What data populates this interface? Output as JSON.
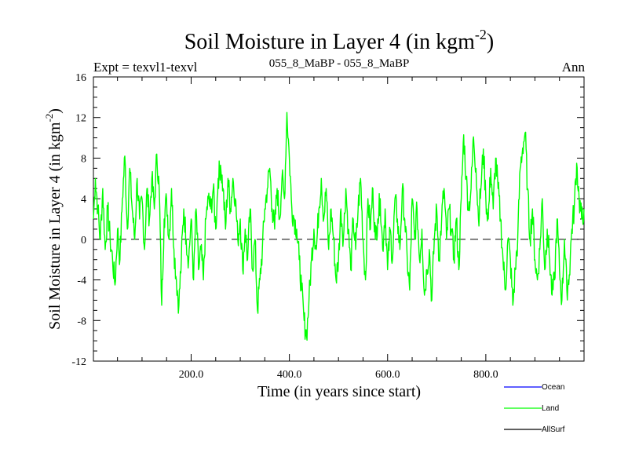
{
  "chart_data": {
    "type": "line",
    "title": "Soil Moisture in Layer 4 (in kgm",
    "title_sup": "-2",
    "title_close": ")",
    "subtitle_left": "Expt = texvl1-texvl",
    "subtitle_center": "055_8_MaBP - 055_8_MaBP",
    "subtitle_right": "Ann",
    "xlabel": "Time (in years since start)",
    "ylabel": "Soil Moisture in Layer 4 (in kgm",
    "ylabel_sup": "-2",
    "ylabel_close": ")",
    "xlim": [
      1,
      1000
    ],
    "ylim": [
      -12,
      16
    ],
    "xticks": [
      200,
      400,
      600,
      800
    ],
    "xtick_labels": [
      "200.0",
      "400.0",
      "600.0",
      "800.0"
    ],
    "yticks": [
      -12,
      -8,
      -4,
      0,
      4,
      8,
      12,
      16
    ],
    "ytick_labels": [
      "-12",
      "-8",
      "-4",
      "0",
      "4",
      "8",
      "12",
      "16"
    ],
    "zero_line": 0,
    "keypoints": [
      [
        1,
        2
      ],
      [
        5,
        6
      ],
      [
        10,
        3
      ],
      [
        15,
        0
      ],
      [
        20,
        5
      ],
      [
        25,
        -1
      ],
      [
        30,
        3
      ],
      [
        35,
        0
      ],
      [
        40,
        -2
      ],
      [
        45,
        -4.5
      ],
      [
        50,
        1
      ],
      [
        55,
        -2
      ],
      [
        60,
        4
      ],
      [
        65,
        8.2
      ],
      [
        70,
        1
      ],
      [
        75,
        7
      ],
      [
        80,
        3
      ],
      [
        85,
        0
      ],
      [
        90,
        6
      ],
      [
        95,
        2
      ],
      [
        100,
        4
      ],
      [
        105,
        -1
      ],
      [
        110,
        5
      ],
      [
        115,
        2
      ],
      [
        120,
        6
      ],
      [
        125,
        3
      ],
      [
        130,
        8.4
      ],
      [
        135,
        5
      ],
      [
        140,
        -6.5
      ],
      [
        145,
        2
      ],
      [
        150,
        4
      ],
      [
        155,
        0
      ],
      [
        160,
        5
      ],
      [
        165,
        -1
      ],
      [
        170,
        -4
      ],
      [
        175,
        -6.5
      ],
      [
        180,
        -2
      ],
      [
        185,
        3
      ],
      [
        190,
        0
      ],
      [
        195,
        -2
      ],
      [
        200,
        2
      ],
      [
        205,
        -4
      ],
      [
        210,
        3
      ],
      [
        215,
        -3
      ],
      [
        220,
        -1
      ],
      [
        225,
        -4
      ],
      [
        230,
        2
      ],
      [
        235,
        4
      ],
      [
        240,
        3
      ],
      [
        245,
        5
      ],
      [
        250,
        1
      ],
      [
        255,
        6
      ],
      [
        260,
        7.3
      ],
      [
        265,
        5
      ],
      [
        270,
        1
      ],
      [
        275,
        6
      ],
      [
        280,
        3
      ],
      [
        285,
        6
      ],
      [
        290,
        4
      ],
      [
        295,
        0
      ],
      [
        300,
        2
      ],
      [
        305,
        -3
      ],
      [
        310,
        1
      ],
      [
        315,
        -2
      ],
      [
        320,
        3
      ],
      [
        325,
        -3
      ],
      [
        330,
        0
      ],
      [
        335,
        -7
      ],
      [
        340,
        -4
      ],
      [
        345,
        -1
      ],
      [
        350,
        3
      ],
      [
        355,
        5
      ],
      [
        360,
        7
      ],
      [
        365,
        3
      ],
      [
        370,
        1
      ],
      [
        375,
        5
      ],
      [
        380,
        2
      ],
      [
        385,
        6
      ],
      [
        390,
        4
      ],
      [
        395,
        12.5
      ],
      [
        400,
        8
      ],
      [
        405,
        3
      ],
      [
        410,
        2
      ],
      [
        415,
        1
      ],
      [
        420,
        -2
      ],
      [
        425,
        -5
      ],
      [
        430,
        -8
      ],
      [
        435,
        -9.5
      ],
      [
        440,
        -6
      ],
      [
        445,
        -2
      ],
      [
        450,
        1
      ],
      [
        455,
        -1
      ],
      [
        460,
        3
      ],
      [
        465,
        6
      ],
      [
        470,
        2
      ],
      [
        475,
        5
      ],
      [
        480,
        -1
      ],
      [
        485,
        3
      ],
      [
        490,
        0
      ],
      [
        495,
        -4
      ],
      [
        500,
        -2
      ],
      [
        505,
        3
      ],
      [
        510,
        0
      ],
      [
        515,
        5
      ],
      [
        520,
        1
      ],
      [
        525,
        -3
      ],
      [
        530,
        2
      ],
      [
        535,
        -1
      ],
      [
        540,
        3
      ],
      [
        545,
        6
      ],
      [
        550,
        0
      ],
      [
        555,
        -4
      ],
      [
        560,
        4
      ],
      [
        565,
        1
      ],
      [
        570,
        5
      ],
      [
        575,
        0
      ],
      [
        580,
        2
      ],
      [
        585,
        4
      ],
      [
        590,
        -1
      ],
      [
        595,
        3
      ],
      [
        600,
        -3
      ],
      [
        605,
        1
      ],
      [
        610,
        -2
      ],
      [
        615,
        4
      ],
      [
        620,
        2
      ],
      [
        625,
        -1
      ],
      [
        630,
        5
      ],
      [
        635,
        2
      ],
      [
        640,
        -2
      ],
      [
        645,
        -5
      ],
      [
        650,
        4
      ],
      [
        655,
        0
      ],
      [
        660,
        3
      ],
      [
        665,
        -2
      ],
      [
        670,
        1
      ],
      [
        675,
        -5.5
      ],
      [
        680,
        -3
      ],
      [
        685,
        -1
      ],
      [
        690,
        -6
      ],
      [
        695,
        0
      ],
      [
        700,
        3
      ],
      [
        705,
        -2
      ],
      [
        710,
        2
      ],
      [
        715,
        5
      ],
      [
        720,
        0
      ],
      [
        725,
        3
      ],
      [
        730,
        1
      ],
      [
        735,
        -2
      ],
      [
        740,
        2
      ],
      [
        745,
        -3
      ],
      [
        750,
        4
      ],
      [
        755,
        10.3
      ],
      [
        760,
        6
      ],
      [
        765,
        3
      ],
      [
        770,
        5
      ],
      [
        775,
        10.1
      ],
      [
        780,
        7
      ],
      [
        785,
        2
      ],
      [
        790,
        5
      ],
      [
        795,
        8.9
      ],
      [
        800,
        4
      ],
      [
        805,
        2
      ],
      [
        810,
        7
      ],
      [
        815,
        3
      ],
      [
        820,
        8
      ],
      [
        825,
        5
      ],
      [
        830,
        2
      ],
      [
        835,
        -2
      ],
      [
        840,
        -5
      ],
      [
        845,
        0
      ],
      [
        850,
        -2
      ],
      [
        855,
        -6.5
      ],
      [
        860,
        -3
      ],
      [
        865,
        0
      ],
      [
        870,
        7
      ],
      [
        875,
        9
      ],
      [
        880,
        10.5
      ],
      [
        885,
        5
      ],
      [
        890,
        0
      ],
      [
        895,
        3
      ],
      [
        900,
        -2
      ],
      [
        905,
        -4
      ],
      [
        910,
        -1
      ],
      [
        915,
        4
      ],
      [
        920,
        -3
      ],
      [
        925,
        1
      ],
      [
        930,
        -2
      ],
      [
        935,
        -5.5
      ],
      [
        940,
        -4
      ],
      [
        945,
        2
      ],
      [
        950,
        -3
      ],
      [
        955,
        -6
      ],
      [
        960,
        0
      ],
      [
        965,
        -5
      ],
      [
        970,
        -3.5
      ],
      [
        975,
        1
      ],
      [
        980,
        3
      ],
      [
        985,
        7.5
      ],
      [
        990,
        4
      ],
      [
        995,
        2
      ],
      [
        1000,
        3
      ]
    ],
    "series": [
      {
        "name": "Ocean",
        "color": "#0000ff",
        "visible": false
      },
      {
        "name": "Land",
        "color": "#00ff00",
        "visible": true
      },
      {
        "name": "AllSurf",
        "color": "#000000",
        "visible": false
      }
    ],
    "legend_position": "bottom-right",
    "grid": false
  }
}
